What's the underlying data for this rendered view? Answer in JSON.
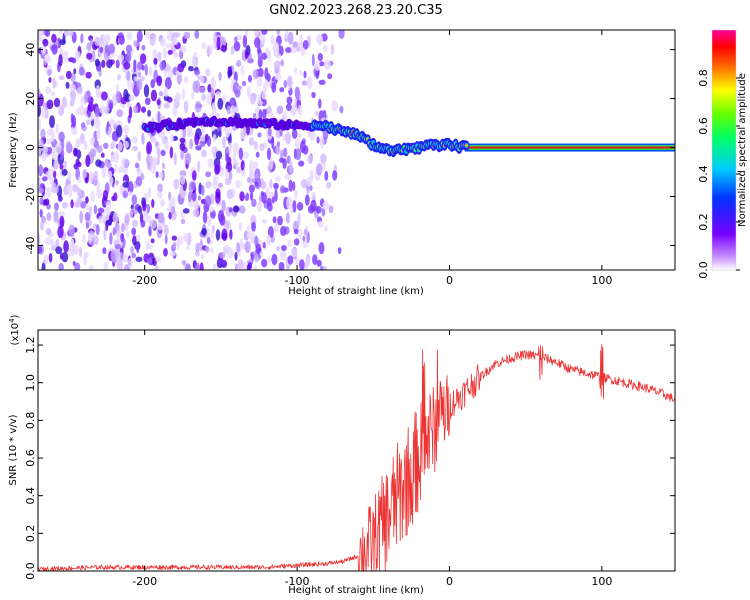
{
  "title": "GN02.2023.268.23.20.C35",
  "chart_data": [
    {
      "type": "heatmap",
      "panel": "spectrogram",
      "xlabel": "Height of straight line (km)",
      "ylabel": "Frequency (Hz)",
      "xlim": [
        -270,
        148
      ],
      "ylim": [
        -50,
        48
      ],
      "x_ticks": [
        -200,
        -100,
        0,
        100
      ],
      "x_tick_labels": [
        "-200",
        "-100",
        "0",
        "100"
      ],
      "y_ticks": [
        -40,
        -20,
        0,
        20,
        40
      ],
      "y_tick_labels": [
        "-40",
        "-20",
        "0",
        "20",
        "40"
      ],
      "noise_region_x": [
        -270,
        -70
      ],
      "signal_trace": {
        "x": [
          -200,
          -160,
          -130,
          -100,
          -85,
          -70,
          -60,
          -50,
          -40,
          -30,
          -20,
          -10,
          0,
          10,
          148
        ],
        "frequency_hz": [
          8,
          11,
          10,
          9,
          9,
          7,
          5,
          1,
          -1,
          -1,
          0,
          1,
          1,
          0,
          0
        ]
      },
      "colorbar": {
        "label": "Normalized spectral amplitude",
        "range": [
          0.0,
          1.0
        ],
        "ticks": [
          0.0,
          0.2,
          0.4,
          0.6,
          0.8
        ],
        "tick_labels": [
          "0.0",
          "0.2",
          "0.4",
          "0.6",
          "0.8"
        ]
      }
    },
    {
      "type": "line",
      "panel": "snr",
      "xlabel": "Height of straight line (km)",
      "ylabel": "SNR (10 * v/v)",
      "y_multiplier": "(x10",
      "y_multiplier_exp": "4",
      "y_multiplier_close": ")",
      "xlim": [
        -270,
        148
      ],
      "ylim": [
        0.0,
        1.28
      ],
      "x_ticks": [
        -200,
        -100,
        0,
        100
      ],
      "x_tick_labels": [
        "-200",
        "-100",
        "0",
        "100"
      ],
      "y_ticks": [
        0.0,
        0.2,
        0.4,
        0.6,
        0.8,
        1.0,
        1.2
      ],
      "y_tick_labels": [
        "0.0",
        "0.2",
        "0.4",
        "0.6",
        "0.8",
        "1.0",
        "1.2"
      ],
      "color": "#ee3333",
      "series": [
        {
          "name": "SNR",
          "x": [
            -270,
            -230,
            -200,
            -150,
            -120,
            -100,
            -80,
            -70,
            -60,
            -50,
            -40,
            -30,
            -20,
            -15,
            -10,
            -5,
            0,
            10,
            20,
            30,
            40,
            50,
            60,
            70,
            80,
            90,
            100,
            110,
            120,
            130,
            140,
            148
          ],
          "y": [
            0.01,
            0.02,
            0.02,
            0.02,
            0.02,
            0.03,
            0.04,
            0.05,
            0.08,
            0.15,
            0.3,
            0.45,
            0.6,
            0.7,
            0.75,
            0.82,
            0.88,
            0.95,
            1.03,
            1.1,
            1.13,
            1.15,
            1.14,
            1.11,
            1.07,
            1.05,
            1.03,
            1.01,
            0.99,
            0.97,
            0.94,
            0.91
          ]
        }
      ]
    }
  ]
}
